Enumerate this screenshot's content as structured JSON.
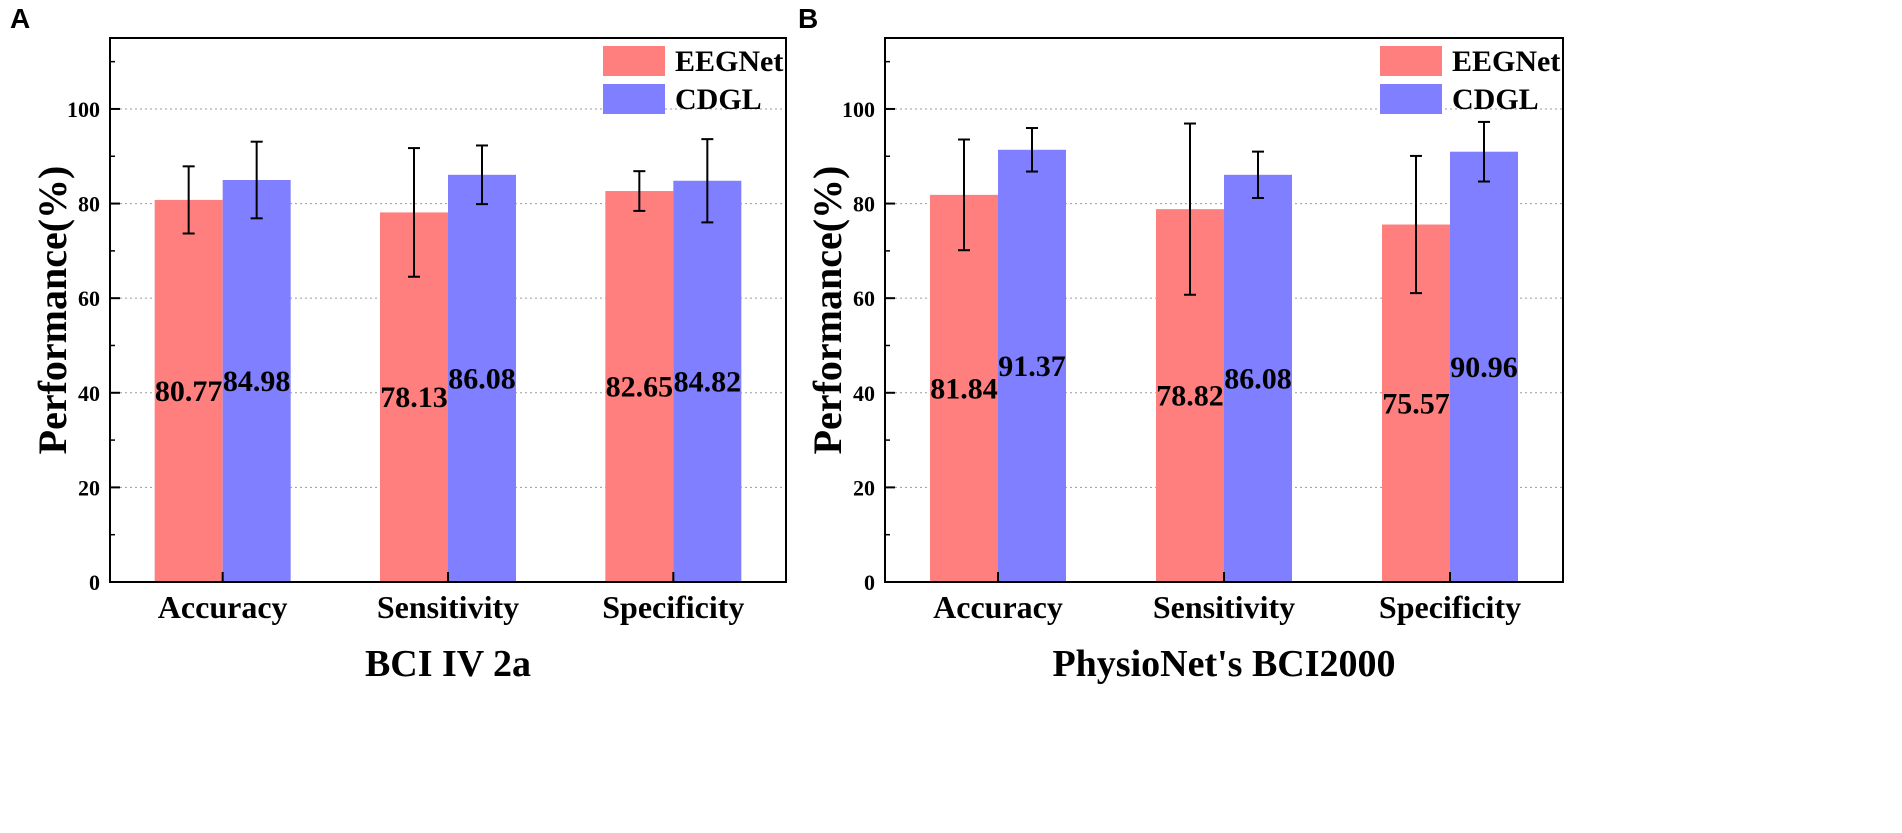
{
  "colors": {
    "eegnet": "#ff7f7f",
    "cdgl": "#7f7fff",
    "axis": "#000000",
    "grid": "#9a9a9a"
  },
  "chart_data": [
    {
      "type": "bar",
      "panel": "A",
      "title": "",
      "xlabel": "BCI IV 2a",
      "ylabel": "Performance(%)",
      "ylim": [
        0,
        115
      ],
      "yticks": [
        0,
        20,
        40,
        60,
        80,
        100
      ],
      "grid": true,
      "legend_position": "top-right",
      "categories": [
        "Accuracy",
        "Sensitivity",
        "Specificity"
      ],
      "series": [
        {
          "name": "EEGNet",
          "values": [
            80.77,
            78.13,
            82.65
          ],
          "errors": [
            7.1,
            13.6,
            4.2
          ],
          "labels": [
            "80.77",
            "78.13",
            "82.65"
          ]
        },
        {
          "name": "CDGL",
          "values": [
            84.98,
            86.08,
            84.82
          ],
          "errors": [
            8.1,
            6.2,
            8.8
          ],
          "labels": [
            "84.98",
            "86.08",
            "84.82"
          ]
        }
      ]
    },
    {
      "type": "bar",
      "panel": "B",
      "title": "",
      "xlabel": "PhysioNet's BCI2000",
      "ylabel": "Performance(%)",
      "ylim": [
        0,
        115
      ],
      "yticks": [
        0,
        20,
        40,
        60,
        80,
        100
      ],
      "grid": true,
      "legend_position": "top-right",
      "categories": [
        "Accuracy",
        "Sensitivity",
        "Specificity"
      ],
      "series": [
        {
          "name": "EEGNet",
          "values": [
            81.84,
            78.82,
            75.57
          ],
          "errors": [
            11.7,
            18.1,
            14.5
          ],
          "labels": [
            "81.84",
            "78.82",
            "75.57"
          ]
        },
        {
          "name": "CDGL",
          "values": [
            91.37,
            86.08,
            90.96
          ],
          "errors": [
            4.6,
            4.9,
            6.3
          ],
          "labels": [
            "91.37",
            "86.08",
            "90.96"
          ]
        }
      ]
    }
  ]
}
